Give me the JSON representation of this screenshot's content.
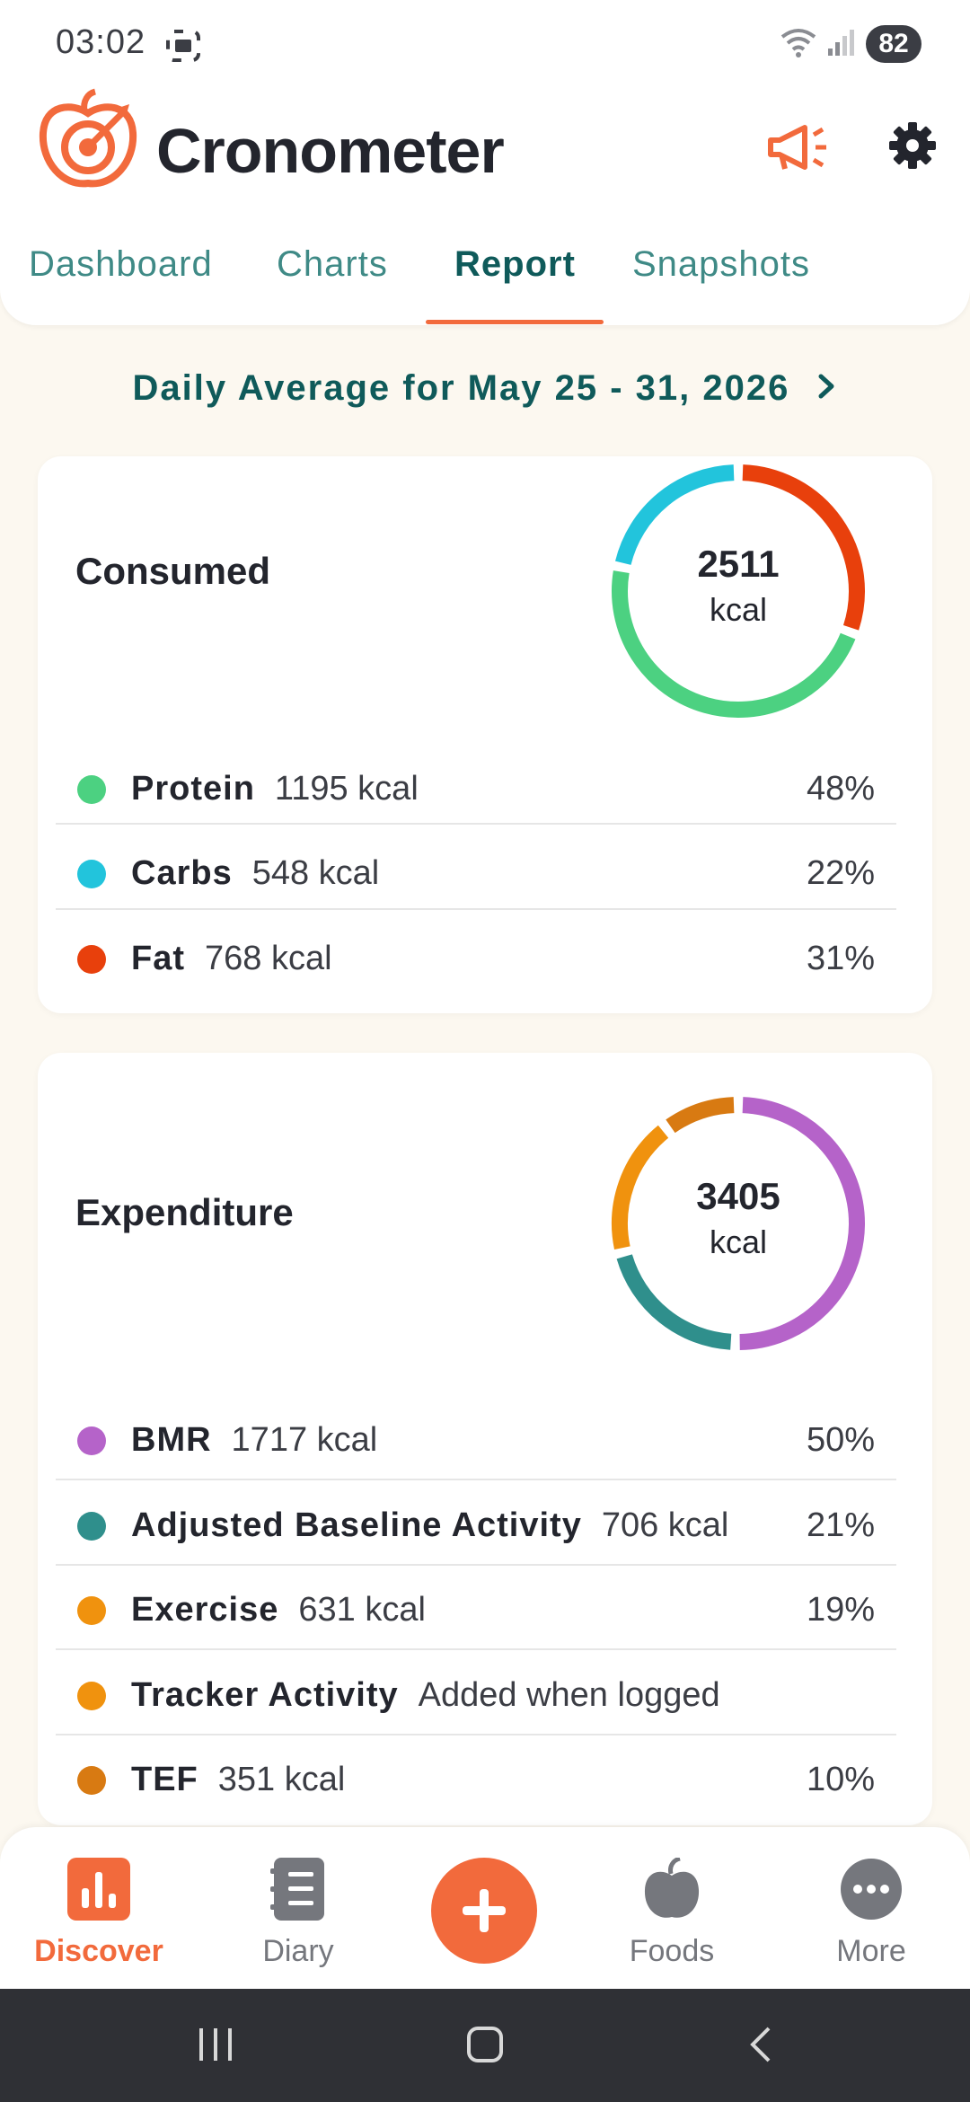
{
  "status_bar": {
    "time": "03:02",
    "battery": "82"
  },
  "app": {
    "title": "Cronometer"
  },
  "tabs": [
    {
      "label": "Dashboard",
      "active": false
    },
    {
      "label": "Charts",
      "active": false
    },
    {
      "label": "Report",
      "active": true
    },
    {
      "label": "Snapshots",
      "active": false
    }
  ],
  "date_range": "Daily Average for May 25 - 31, 2026",
  "consumed": {
    "title": "Consumed",
    "total": "2511",
    "unit": "kcal",
    "items": [
      {
        "name": "Protein",
        "amount": "1195 kcal",
        "pct": "48%",
        "color": "#4cd181",
        "fraction": 0.476
      },
      {
        "name": "Carbs",
        "amount": "548 kcal",
        "pct": "22%",
        "color": "#22c4dc",
        "fraction": 0.218
      },
      {
        "name": "Fat",
        "amount": "768 kcal",
        "pct": "31%",
        "color": "#e8400c",
        "fraction": 0.306
      }
    ]
  },
  "expenditure": {
    "title": "Expenditure",
    "total": "3405",
    "unit": "kcal",
    "items": [
      {
        "name": "BMR",
        "amount": "1717 kcal",
        "pct": "50%",
        "color": "#b563c9",
        "fraction": 0.504
      },
      {
        "name": "Adjusted Baseline Activity",
        "amount": "706 kcal",
        "pct": "21%",
        "color": "#2f8f8c",
        "fraction": 0.207
      },
      {
        "name": "Exercise",
        "amount": "631 kcal",
        "pct": "19%",
        "color": "#f0920e",
        "fraction": 0.186
      },
      {
        "name": "Tracker Activity",
        "amount": "Added when logged",
        "pct": "",
        "color": "#f0920e",
        "fraction": 0
      },
      {
        "name": "TEF",
        "amount": "351 kcal",
        "pct": "10%",
        "color": "#d87a12",
        "fraction": 0.103
      }
    ]
  },
  "bottom_nav": [
    {
      "label": "Discover",
      "icon": "bar-chart-icon",
      "active": true
    },
    {
      "label": "Diary",
      "icon": "notebook-icon",
      "active": false
    },
    {
      "label": "Foods",
      "icon": "apple-icon",
      "active": false
    },
    {
      "label": "More",
      "icon": "more-dots-icon",
      "active": false
    }
  ],
  "colors": {
    "accent": "#f26a3c",
    "teal": "#0f5a5a"
  }
}
